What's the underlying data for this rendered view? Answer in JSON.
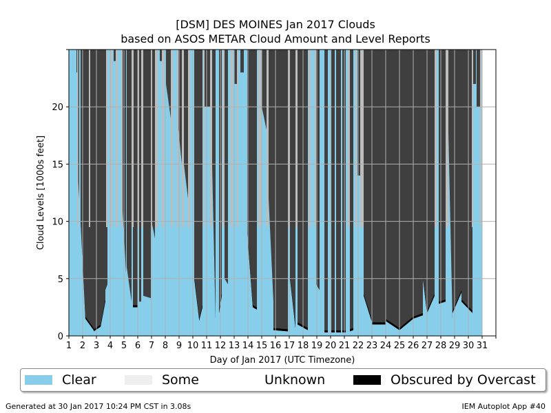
{
  "title_line1": "[DSM] DES MOINES Jan 2017 Clouds",
  "title_line2": "based on ASOS METAR Cloud Amount and Level Reports",
  "footer_left": "Generated at 30 Jan 2017 10:24 PM CST in 3.08s",
  "footer_right": "IEM Autoplot App #40",
  "legend": [
    {
      "label": "Clear",
      "color": "#87ceeb"
    },
    {
      "label": "Some",
      "color": "#eeeeee"
    },
    {
      "label": "Unknown",
      "color": "#ffffff"
    },
    {
      "label": "Obscured by Overcast",
      "color": "#000000"
    }
  ],
  "chart_data": {
    "type": "area",
    "title": "[DSM] DES MOINES Jan 2017 Clouds\nbased on ASOS METAR Cloud Amount and Level Reports",
    "xlabel": "Day of Jan 2017 (UTC Timezone)",
    "ylabel": "Cloud Levels [1000s feet]",
    "xlim": [
      1,
      32
    ],
    "ylim": [
      0,
      25
    ],
    "xticks": [
      "1",
      "2",
      "3",
      "4",
      "5",
      "6",
      "7",
      "8",
      "9",
      "10",
      "11",
      "12",
      "13",
      "14",
      "15",
      "16",
      "17",
      "18",
      "19",
      "20",
      "21",
      "22",
      "23",
      "24",
      "25",
      "26",
      "27",
      "28",
      "29",
      "30",
      "31"
    ],
    "yticks": [
      "0",
      "5",
      "10",
      "15",
      "20"
    ],
    "grid": true,
    "legend_position": "below",
    "colors": {
      "clear": "#87ceeb",
      "overcast": "#3f3f3f",
      "some": "#bdbdbd",
      "obscured": "#000000",
      "grid": "#b0b0b0"
    },
    "overcast_segments": [
      {
        "start": 1.55,
        "end": 1.6,
        "base_start": 23.0,
        "base_end": 23.0
      },
      {
        "start": 1.6,
        "end": 1.75,
        "base_start": 15.0,
        "base_end": 12.0
      },
      {
        "start": 1.85,
        "end": 2.2,
        "base_start": 10.0,
        "base_end": 1.5
      },
      {
        "start": 2.2,
        "end": 2.8,
        "base_start": 1.5,
        "base_end": 0.5
      },
      {
        "start": 2.8,
        "end": 3.3,
        "base_start": 0.4,
        "base_end": 0.8
      },
      {
        "start": 3.3,
        "end": 3.65,
        "base_start": 0.8,
        "base_end": 3.0
      },
      {
        "start": 3.65,
        "end": 3.8,
        "base_start": 4.0,
        "base_end": 4.5
      },
      {
        "start": 4.25,
        "end": 4.4,
        "base_start": 24.0,
        "base_end": 24.0
      },
      {
        "start": 4.85,
        "end": 5.15,
        "base_start": 12.0,
        "base_end": 5.5
      },
      {
        "start": 5.2,
        "end": 5.55,
        "base_start": 6.0,
        "base_end": 3.0
      },
      {
        "start": 5.65,
        "end": 6.0,
        "base_start": 2.5,
        "base_end": 2.5
      },
      {
        "start": 6.1,
        "end": 6.25,
        "base_start": 3.0,
        "base_end": 3.0
      },
      {
        "start": 6.4,
        "end": 6.95,
        "base_start": 3.5,
        "base_end": 3.3
      },
      {
        "start": 7.0,
        "end": 7.25,
        "base_start": 10.0,
        "base_end": 8.5
      },
      {
        "start": 7.6,
        "end": 7.75,
        "base_start": 24.0,
        "base_end": 24.0
      },
      {
        "start": 8.05,
        "end": 8.4,
        "base_start": 22.0,
        "base_end": 19.0
      },
      {
        "start": 8.95,
        "end": 9.2,
        "base_start": 18.0,
        "base_end": 15.0
      },
      {
        "start": 9.35,
        "end": 9.65,
        "base_start": 15.0,
        "base_end": 12.0
      },
      {
        "start": 10.1,
        "end": 10.45,
        "base_start": 5.0,
        "base_end": 1.5
      },
      {
        "start": 10.45,
        "end": 10.7,
        "base_start": 1.3,
        "base_end": 2.5
      },
      {
        "start": 10.85,
        "end": 11.25,
        "base_start": 20.0,
        "base_end": 20.0
      },
      {
        "start": 11.4,
        "end": 11.65,
        "base_start": 15.0,
        "base_end": 1.5
      },
      {
        "start": 11.9,
        "end": 12.1,
        "base_start": 2.0,
        "base_end": 3.5
      },
      {
        "start": 12.3,
        "end": 12.55,
        "base_start": 5.0,
        "base_end": 4.5
      },
      {
        "start": 13.0,
        "end": 13.2,
        "base_start": 22.0,
        "base_end": 22.0
      },
      {
        "start": 13.45,
        "end": 13.7,
        "base_start": 23.0,
        "base_end": 23.0
      },
      {
        "start": 13.95,
        "end": 14.35,
        "base_start": 9.0,
        "base_end": 2.5
      },
      {
        "start": 14.35,
        "end": 14.65,
        "base_start": 2.5,
        "base_end": 2.3
      },
      {
        "start": 15.0,
        "end": 15.35,
        "base_start": 20.0,
        "base_end": 18.0
      },
      {
        "start": 15.5,
        "end": 15.85,
        "base_start": 12.0,
        "base_end": 3.0
      },
      {
        "start": 15.85,
        "end": 16.9,
        "base_start": 0.5,
        "base_end": 0.4
      },
      {
        "start": 17.05,
        "end": 17.45,
        "base_start": 5.0,
        "base_end": 0.7
      },
      {
        "start": 17.6,
        "end": 18.35,
        "base_start": 1.0,
        "base_end": 0.5
      },
      {
        "start": 18.95,
        "end": 19.2,
        "base_start": 4.5,
        "base_end": 4.0
      },
      {
        "start": 19.55,
        "end": 19.8,
        "base_start": 0.3,
        "base_end": 0.3
      },
      {
        "start": 20.05,
        "end": 20.3,
        "base_start": 0.3,
        "base_end": 0.3
      },
      {
        "start": 20.4,
        "end": 20.75,
        "base_start": 0.3,
        "base_end": 0.3
      },
      {
        "start": 20.85,
        "end": 21.1,
        "base_start": 0.3,
        "base_end": 0.3
      },
      {
        "start": 21.4,
        "end": 21.65,
        "base_start": 0.4,
        "base_end": 0.5
      },
      {
        "start": 21.95,
        "end": 22.15,
        "base_start": 14.0,
        "base_end": 14.0
      },
      {
        "start": 22.4,
        "end": 23.0,
        "base_start": 3.5,
        "base_end": 1.2
      },
      {
        "start": 23.0,
        "end": 24.0,
        "base_start": 1.0,
        "base_end": 1.0
      },
      {
        "start": 24.0,
        "end": 25.0,
        "base_start": 1.3,
        "base_end": 0.5
      },
      {
        "start": 25.0,
        "end": 26.0,
        "base_start": 0.5,
        "base_end": 1.5
      },
      {
        "start": 26.0,
        "end": 26.7,
        "base_start": 1.5,
        "base_end": 1.8
      },
      {
        "start": 26.7,
        "end": 27.0,
        "base_start": 5.0,
        "base_end": 2.0
      },
      {
        "start": 27.0,
        "end": 27.55,
        "base_start": 2.0,
        "base_end": 3.5
      },
      {
        "start": 27.85,
        "end": 28.35,
        "base_start": 2.8,
        "base_end": 3.0
      },
      {
        "start": 28.55,
        "end": 28.85,
        "base_start": 18.0,
        "base_end": 1.5
      },
      {
        "start": 28.85,
        "end": 29.5,
        "base_start": 2.0,
        "base_end": 3.8
      },
      {
        "start": 29.5,
        "end": 30.3,
        "base_start": 3.0,
        "base_end": 2.0
      },
      {
        "start": 30.35,
        "end": 30.55,
        "base_start": 22.0,
        "base_end": 22.0
      },
      {
        "start": 30.6,
        "end": 30.85,
        "base_start": 20.0,
        "base_end": 20.0
      }
    ],
    "some_segments": [
      {
        "start": 1.6,
        "end": 1.68
      },
      {
        "start": 2.45,
        "end": 2.55
      },
      {
        "start": 3.7,
        "end": 3.8
      },
      {
        "start": 4.0,
        "end": 4.15
      },
      {
        "start": 4.4,
        "end": 4.55
      },
      {
        "start": 4.8,
        "end": 4.9
      },
      {
        "start": 5.55,
        "end": 5.7
      },
      {
        "start": 6.0,
        "end": 6.1
      },
      {
        "start": 6.25,
        "end": 6.4
      },
      {
        "start": 6.95,
        "end": 7.05
      },
      {
        "start": 7.25,
        "end": 7.45
      },
      {
        "start": 7.75,
        "end": 7.9
      },
      {
        "start": 8.4,
        "end": 8.55
      },
      {
        "start": 8.85,
        "end": 8.95
      },
      {
        "start": 9.2,
        "end": 9.35
      },
      {
        "start": 9.65,
        "end": 9.8
      },
      {
        "start": 10.75,
        "end": 10.85
      },
      {
        "start": 11.25,
        "end": 11.4
      },
      {
        "start": 12.15,
        "end": 12.3
      },
      {
        "start": 12.75,
        "end": 12.9
      },
      {
        "start": 13.2,
        "end": 13.3
      },
      {
        "start": 14.75,
        "end": 14.95
      },
      {
        "start": 15.35,
        "end": 15.5
      },
      {
        "start": 16.9,
        "end": 17.05
      },
      {
        "start": 17.45,
        "end": 17.6
      },
      {
        "start": 18.4,
        "end": 18.55
      },
      {
        "start": 18.85,
        "end": 18.95
      },
      {
        "start": 21.25,
        "end": 21.4
      },
      {
        "start": 21.8,
        "end": 21.9
      },
      {
        "start": 22.15,
        "end": 22.4
      },
      {
        "start": 27.55,
        "end": 27.7
      },
      {
        "start": 28.35,
        "end": 28.55
      },
      {
        "start": 30.25,
        "end": 30.35
      },
      {
        "start": 30.85,
        "end": 30.95
      }
    ]
  }
}
